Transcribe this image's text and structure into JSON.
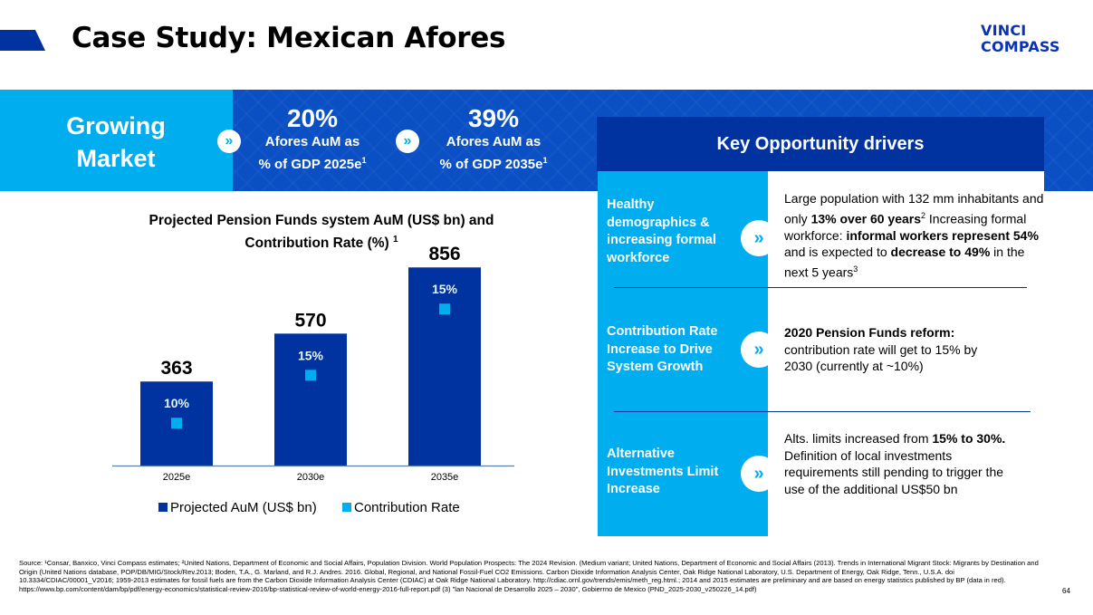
{
  "header": {
    "title": "Case Study: Mexican Afores",
    "logo_line1": "VINCI",
    "logo_line2": "COMPASS"
  },
  "banner": {
    "label_line1": "Growing",
    "label_line2": "Market",
    "stats": [
      {
        "value": "20%",
        "line1": "Afores AuM as",
        "line2": "% of GDP 2025e",
        "sup": "1"
      },
      {
        "value": "39%",
        "line1": "Afores AuM as",
        "line2": "% of GDP 2035e",
        "sup": "1"
      }
    ],
    "chevron_icon": "»"
  },
  "drivers": {
    "header": "Key Opportunity drivers",
    "chevron_icon": "»",
    "items": [
      {
        "label": "Healthy demographics & increasing formal workforce",
        "text_parts": [
          {
            "t": "Large population with 132 mm inhabitants and only ",
            "b": false
          },
          {
            "t": "13% over 60 years",
            "b": true
          },
          {
            "t": "2",
            "sup": true
          },
          {
            "t": " Increasing formal workforce: ",
            "b": false
          },
          {
            "t": "informal workers represent 54%",
            "b": true
          },
          {
            "t": " and is expected to ",
            "b": false
          },
          {
            "t": "decrease to 49%",
            "b": true
          },
          {
            "t": " in the next 5 years",
            "b": false
          },
          {
            "t": "3",
            "sup": true
          }
        ]
      },
      {
        "label": "Contribution Rate Increase to Drive System Growth",
        "text_parts": [
          {
            "t": "2020 Pension Funds reform:",
            "b": true
          },
          {
            "t": " contribution rate will get to 15% by 2030 (currently at ~10%)",
            "b": false
          }
        ]
      },
      {
        "label": "Alternative Investments Limit Increase",
        "text_parts": [
          {
            "t": "Alts. limits increased from ",
            "b": false
          },
          {
            "t": "15% to 30%.",
            "b": true
          },
          {
            "t": " Definition of local investments requirements still pending to trigger the use of the additional US$50 bn",
            "b": false
          }
        ]
      }
    ]
  },
  "chart_data": {
    "type": "bar",
    "title": "Projected Pension Funds system AuM (US$ bn) and Contribution Rate (%)",
    "title_sup": "1",
    "categories": [
      "2025e",
      "2030e",
      "2035e"
    ],
    "series": [
      {
        "name": "Projected AuM (US$ bn)",
        "values": [
          363,
          570,
          856
        ],
        "color": "#0033a0",
        "labels": [
          "363",
          "570",
          "856"
        ]
      },
      {
        "name": "Contribution Rate",
        "values": [
          10,
          15,
          15
        ],
        "color": "#00aeef",
        "labels": [
          "10%",
          "15%",
          "15%"
        ],
        "marker": "square"
      }
    ],
    "xlabel": "",
    "ylabel": "",
    "ylim": [
      0,
      900
    ],
    "rate_ylim": [
      0,
      30
    ],
    "grid": false,
    "legend": "bottom"
  },
  "footer": {
    "source": "Source: ¹Consar, Banxico, Vinci Compass estimates; ²United Nations, Department of Economic and Social Affairs, Population Division. World Population Prospects: The 2024 Revision. (Medium variant; United Nations, Department of Economic and Social Affairs (2013). Trends in International Migrant Stock: Migrants by Destination and Origin (United Nations database, POP/DB/MIG/Stock/Rev.2013; Boden, T.A., G. Marland, and R.J. Andres. 2016. Global, Regional, and National Fossil-Fuel CO2 Emissions. Carbon Dioxide Information Analysis Center, Oak Ridge National Laboratory, U.S. Department of Energy, Oak Ridge, Tenn., U.S.A. doi 10.3334/CDIAC/00001_V2016; 1959-2013 estimates for fossil fuels are from the Carbon Dioxide Information Analysis Center (CDIAC) at Oak Ridge National Laboratory. http://cdiac.ornl.gov/trends/emis/meth_reg.html.; 2014 and 2015 estimates are preliminary and are based on energy statistics published by BP (data in red). https://www.bp.com/content/dam/bp/pdf/energy-economics/statistical-review-2016/bp-statistical-review-of-world-energy-2016-full-report.pdf (3) \"lan Nacional de Desarrollo 2025 – 2030\", Gobierrno de Mexico (PND_2025-2030_v250226_14.pdf)",
    "page_number": "64"
  }
}
